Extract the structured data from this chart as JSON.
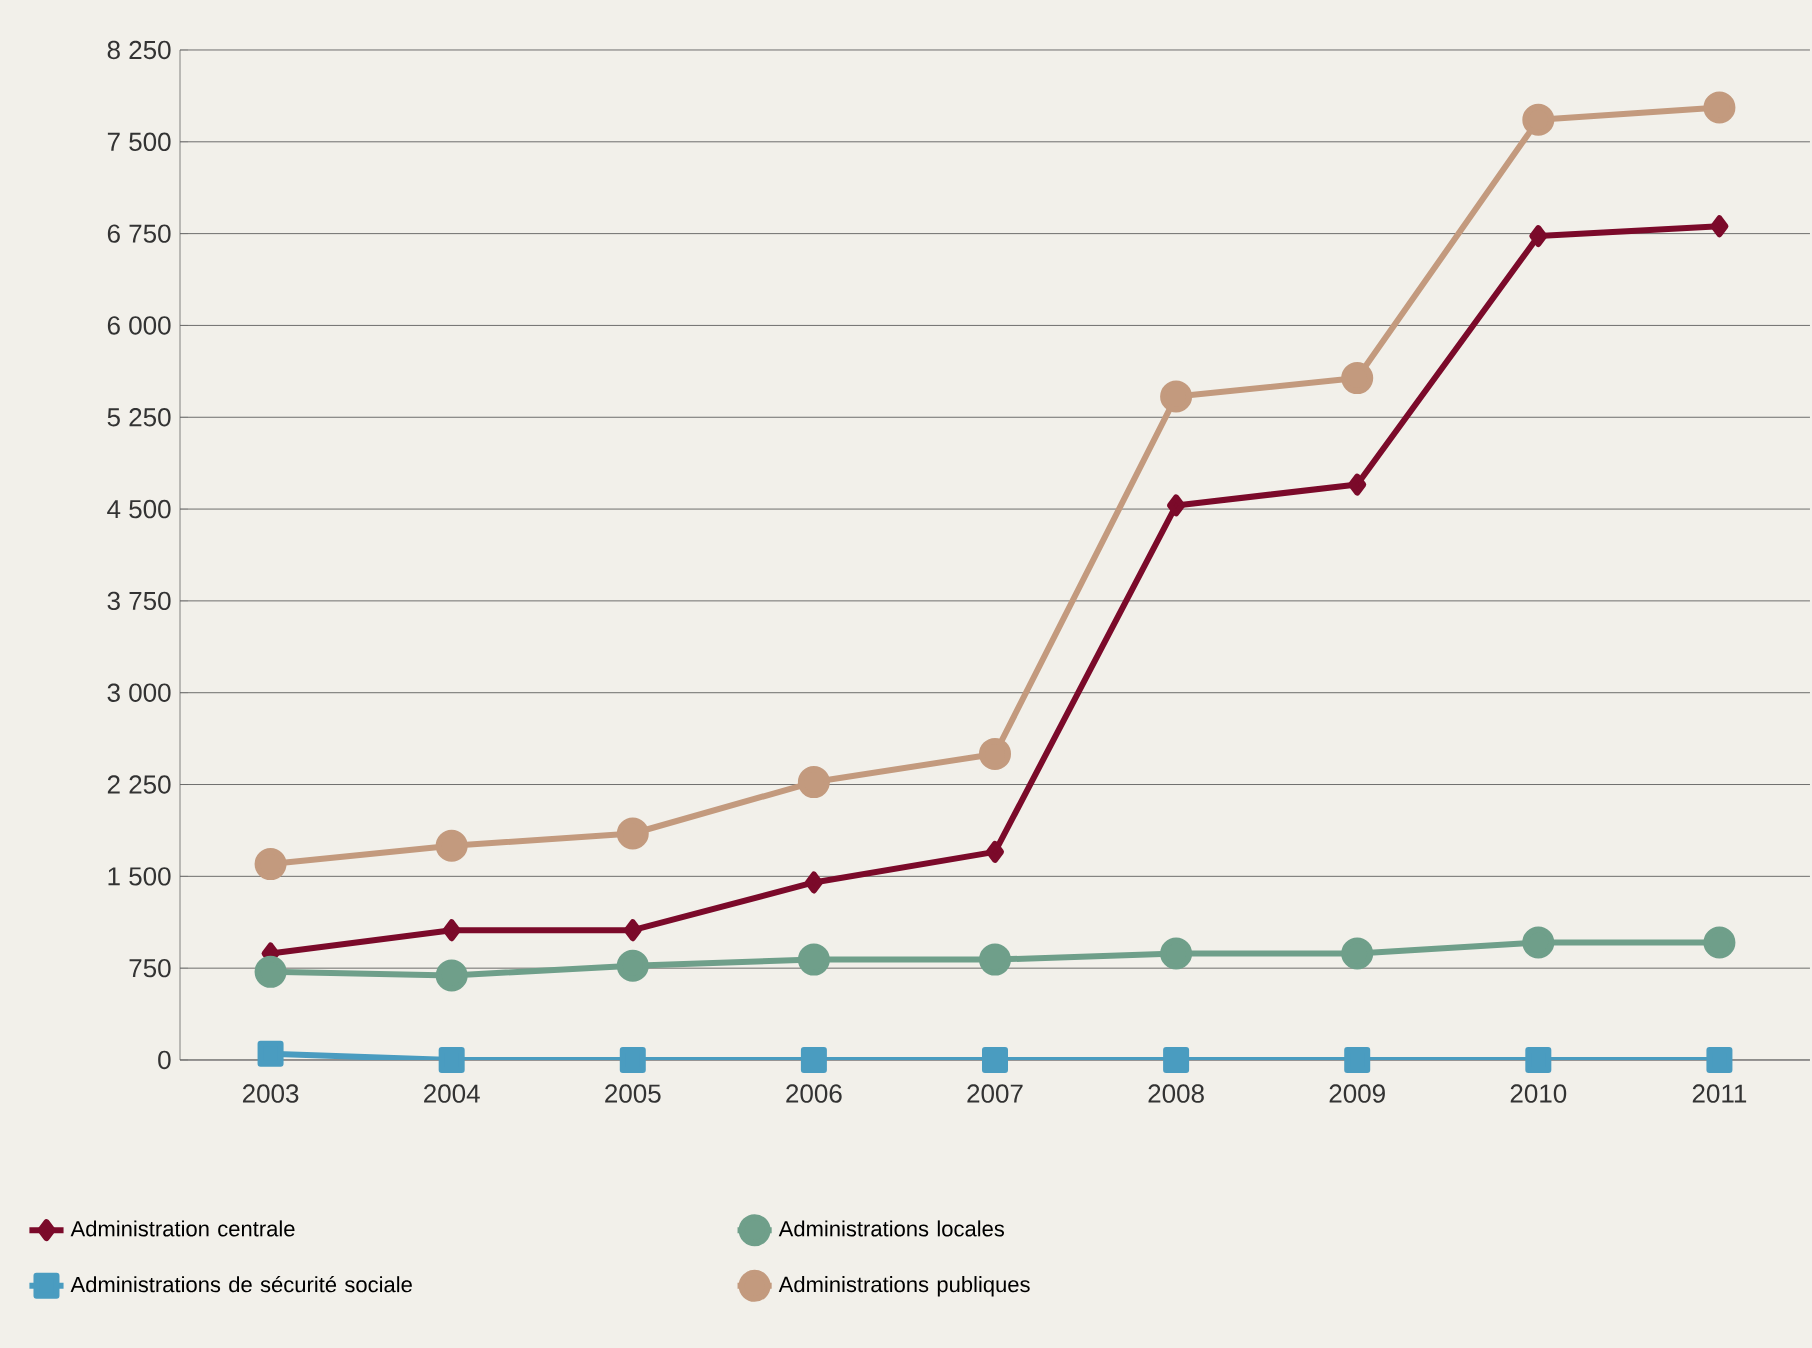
{
  "chart_data": {
    "type": "line",
    "categories": [
      "2003",
      "2004",
      "2005",
      "2006",
      "2007",
      "2008",
      "2009",
      "2010",
      "2011"
    ],
    "series": [
      {
        "name": "Administration centrale",
        "color": "#7b0a2a",
        "marker": "diamond",
        "values": [
          870,
          1060,
          1060,
          1450,
          1700,
          4530,
          4700,
          6730,
          6810
        ]
      },
      {
        "name": "Administrations locales",
        "color": "#6f9f8a",
        "marker": "circle",
        "values": [
          720,
          690,
          770,
          820,
          820,
          870,
          870,
          960,
          960
        ]
      },
      {
        "name": "Administrations de sécurité sociale",
        "color": "#4a9cc0",
        "marker": "square",
        "values": [
          50,
          0,
          0,
          0,
          0,
          0,
          0,
          0,
          0
        ]
      },
      {
        "name": "Administrations publiques",
        "color": "#c39a7e",
        "marker": "circle",
        "values": [
          1600,
          1750,
          1850,
          2270,
          2500,
          5420,
          5570,
          7680,
          7780
        ]
      }
    ],
    "ylim": [
      0,
      8250
    ],
    "yticks": [
      0,
      750,
      {
        "value": 1500,
        "label": "1 500"
      },
      {
        "value": 2250,
        "label": "2 250"
      },
      {
        "value": 3000,
        "label": "3 000"
      },
      {
        "value": 3750,
        "label": "3 750"
      },
      {
        "value": 4500,
        "label": "4 500"
      },
      {
        "value": 5250,
        "label": "5 250"
      },
      {
        "value": 6000,
        "label": "6 000"
      },
      {
        "value": 6750,
        "label": "6 750"
      },
      {
        "value": 7500,
        "label": "7 500"
      },
      {
        "value": 8250,
        "label": "8 250"
      }
    ],
    "grid": "y",
    "legend": "bottom"
  }
}
